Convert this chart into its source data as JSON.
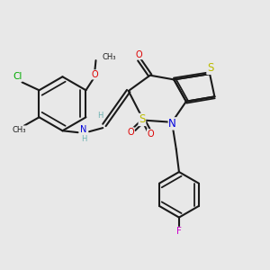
{
  "bg_color": "#e8e8e8",
  "bond_color": "#1a1a1a",
  "bond_lw": 1.5,
  "dbo": 0.055,
  "fs": 7.0,
  "colors": {
    "C": "#1a1a1a",
    "H": "#6ab0b0",
    "N": "#0000dd",
    "O": "#dd0000",
    "S": "#bbbb00",
    "Cl": "#00aa00",
    "F": "#cc00cc"
  },
  "figsize": [
    3.0,
    3.0
  ],
  "dpi": 100,
  "xl": 0,
  "xr": 9.5,
  "yb": 0.5,
  "yt": 9.5
}
